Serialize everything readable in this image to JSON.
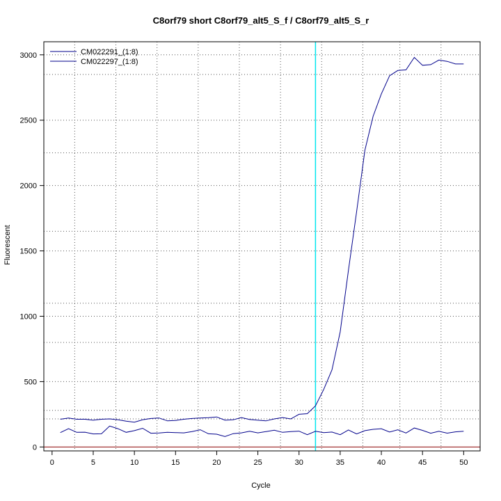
{
  "chart_data": {
    "type": "line",
    "title": "C8orf79 short C8orf79_alt5_S_f / C8orf79_alt5_S_r",
    "xlabel": "Cycle",
    "ylabel": "Fluorescent",
    "xlim": [
      -1,
      52
    ],
    "ylim": [
      -30,
      3100
    ],
    "x_ticks": [
      0,
      5,
      10,
      15,
      20,
      25,
      30,
      35,
      40,
      45,
      50
    ],
    "y_ticks": [
      0,
      500,
      1000,
      1500,
      2000,
      2500,
      3000
    ],
    "grid": true,
    "grid_x": [
      2.75,
      7.75,
      12.75,
      17.75,
      22.75,
      27.75,
      32.75,
      37.75,
      42.25,
      47.25
    ],
    "grid_y": [
      215,
      500,
      1000,
      1500,
      2000,
      2500,
      3000,
      2850,
      2250,
      1650,
      1100,
      800,
      280
    ],
    "threshold_line": {
      "x": 32,
      "color": "#00e5ee"
    },
    "baseline": {
      "y": 0,
      "color": "#8b0000"
    },
    "legend_position": "top-left",
    "series_color": "#00008b",
    "series": [
      {
        "name": "CM022291_(1:8)",
        "x": [
          1,
          2,
          3,
          4,
          5,
          6,
          7,
          8,
          9,
          10,
          11,
          12,
          13,
          14,
          15,
          16,
          17,
          18,
          19,
          20,
          21,
          22,
          23,
          24,
          25,
          26,
          27,
          28,
          29,
          30,
          31,
          32,
          33,
          34,
          35,
          36,
          37,
          38,
          39,
          40,
          41,
          42,
          43,
          44,
          45,
          46,
          47,
          48,
          49,
          50
        ],
        "values": [
          212,
          222,
          212,
          212,
          205,
          212,
          215,
          208,
          198,
          190,
          208,
          218,
          222,
          200,
          203,
          212,
          218,
          222,
          224,
          230,
          205,
          208,
          225,
          210,
          205,
          200,
          215,
          225,
          215,
          250,
          255,
          315,
          440,
          590,
          880,
          1350,
          1800,
          2270,
          2530,
          2700,
          2840,
          2880,
          2885,
          2980,
          2920,
          2925,
          2960,
          2950,
          2930,
          2930
        ]
      },
      {
        "name": "CM022297_(1:8)",
        "x": [
          1,
          2,
          3,
          4,
          5,
          6,
          7,
          8,
          9,
          10,
          11,
          12,
          13,
          14,
          15,
          16,
          17,
          18,
          19,
          20,
          21,
          22,
          23,
          24,
          25,
          26,
          27,
          28,
          29,
          30,
          31,
          32,
          33,
          34,
          35,
          36,
          37,
          38,
          39,
          40,
          41,
          42,
          43,
          44,
          45,
          46,
          47,
          48,
          49,
          50
        ],
        "values": [
          110,
          140,
          112,
          113,
          100,
          101,
          160,
          140,
          112,
          125,
          143,
          105,
          107,
          112,
          110,
          108,
          118,
          132,
          101,
          98,
          80,
          102,
          108,
          120,
          108,
          118,
          128,
          112,
          118,
          121,
          94,
          120,
          110,
          114,
          94,
          130,
          100,
          125,
          135,
          140,
          115,
          132,
          107,
          145,
          127,
          105,
          120,
          106,
          116,
          120
        ]
      }
    ]
  }
}
